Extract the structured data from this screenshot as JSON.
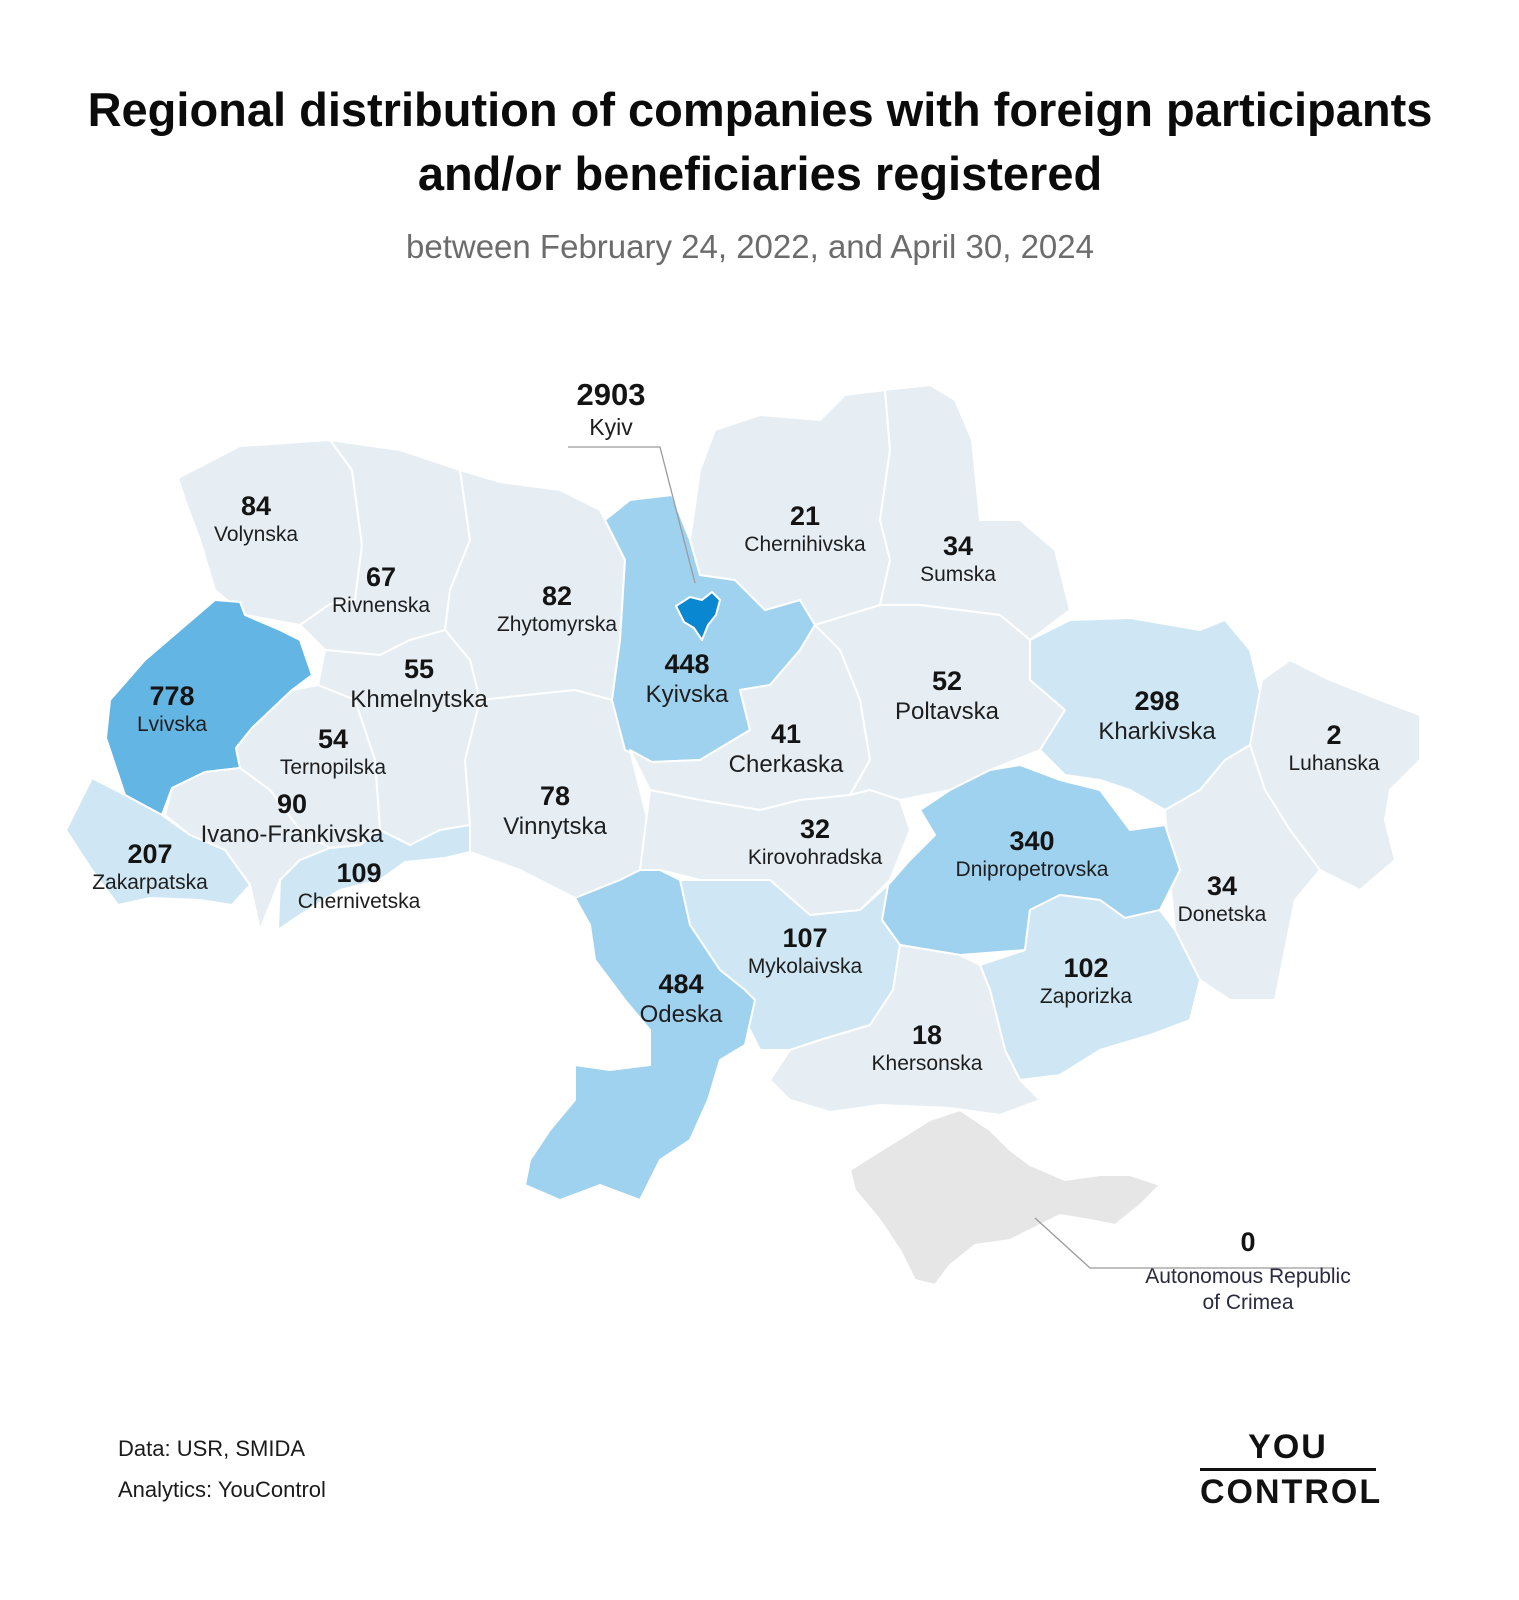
{
  "title": "Regional distribution of companies with foreign participants and/or beneficiaries registered",
  "subtitle": "between February 24, 2022, and April 30, 2024",
  "colors": {
    "scale_0": "#e6e6e6",
    "scale_low": "#e6eef4",
    "scale_mid": "#cfe6f4",
    "scale_high": "#9fd2ef",
    "scale_higher": "#63b6e4",
    "scale_top": "#0a87d1",
    "border": "#ffffff"
  },
  "regions": [
    {
      "name": "Kyiv",
      "value": "2903"
    },
    {
      "name": "Volynska",
      "value": "84"
    },
    {
      "name": "Rivnenska",
      "value": "67"
    },
    {
      "name": "Zhytomyrska",
      "value": "82"
    },
    {
      "name": "Chernihivska",
      "value": "21"
    },
    {
      "name": "Sumska",
      "value": "34"
    },
    {
      "name": "Lvivska",
      "value": "778"
    },
    {
      "name": "Khmelnytska",
      "value": "55"
    },
    {
      "name": "Kyivska",
      "value": "448"
    },
    {
      "name": "Poltavska",
      "value": "52"
    },
    {
      "name": "Kharkivska",
      "value": "298"
    },
    {
      "name": "Luhanska",
      "value": "2"
    },
    {
      "name": "Ternopilska",
      "value": "54"
    },
    {
      "name": "Cherkaska",
      "value": "41"
    },
    {
      "name": "Ivano-Frankivska",
      "value": "90"
    },
    {
      "name": "Vinnytska",
      "value": "78"
    },
    {
      "name": "Kirovohradska",
      "value": "32"
    },
    {
      "name": "Dnipropetrovska",
      "value": "340"
    },
    {
      "name": "Zakarpatska",
      "value": "207"
    },
    {
      "name": "Chernivetska",
      "value": "109"
    },
    {
      "name": "Donetska",
      "value": "34"
    },
    {
      "name": "Mykolaivska",
      "value": "107"
    },
    {
      "name": "Zaporizka",
      "value": "102"
    },
    {
      "name": "Odeska",
      "value": "484"
    },
    {
      "name": "Khersonska",
      "value": "18"
    },
    {
      "name": "Autonomous Republic of Crimea",
      "value": "0"
    }
  ],
  "crimea_label": {
    "line1": "Autonomous Republic",
    "line2": "of Crimea"
  },
  "footer": {
    "data": "Data: USR, SMIDA",
    "analytics": "Analytics: YouControl"
  },
  "logo": {
    "line1": "YOU",
    "line2": "CONTROL"
  }
}
